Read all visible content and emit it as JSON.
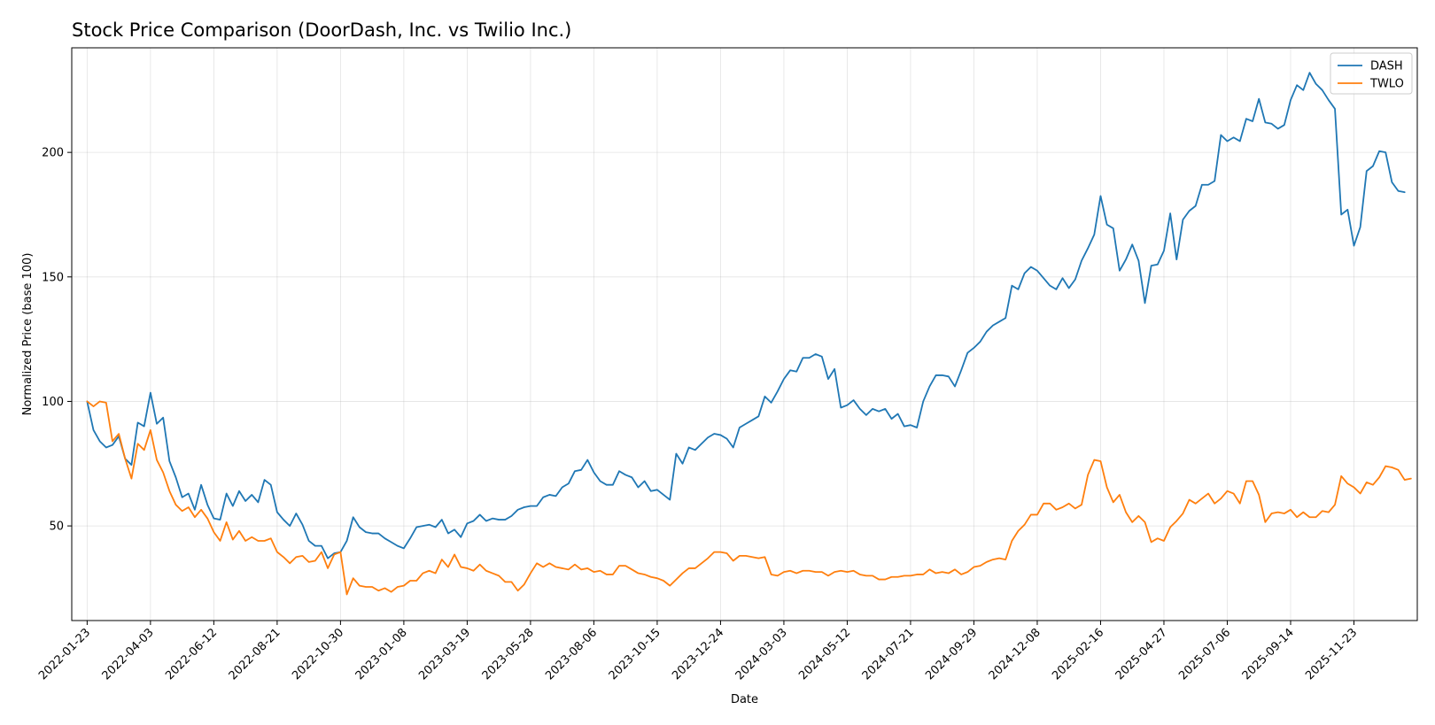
{
  "chart_data": {
    "type": "line",
    "title": "Stock Price Comparison (DoorDash, Inc. vs Twilio Inc.)",
    "xlabel": "Date",
    "ylabel": "Normalized Price (base 100)",
    "x_range": [
      "2022-01-06",
      "2026-02-01"
    ],
    "ylim": [
      12,
      242
    ],
    "yticks": [
      50,
      100,
      150,
      200
    ],
    "xticks": [
      "2022-01-23",
      "2022-04-03",
      "2022-06-12",
      "2022-08-21",
      "2022-10-30",
      "2023-01-08",
      "2023-03-19",
      "2023-05-28",
      "2023-08-06",
      "2023-10-15",
      "2023-12-24",
      "2024-03-03",
      "2024-05-12",
      "2024-07-21",
      "2024-09-29",
      "2024-12-08",
      "2025-02-16",
      "2025-04-27",
      "2025-07-06",
      "2025-09-14",
      "2025-11-23"
    ],
    "grid": true,
    "legend_position": "top-right",
    "start_date": "2022-01-23",
    "step_days": 7,
    "series": [
      {
        "name": "DASH",
        "color": "#1f77b4",
        "values": [
          100,
          88.5,
          84,
          81.5,
          82.5,
          86,
          77,
          74.5,
          91.5,
          90,
          103.5,
          91,
          93.5,
          76,
          69.5,
          61.5,
          63,
          56.5,
          66.5,
          58.5,
          53,
          52.5,
          63,
          58,
          64,
          60,
          62.5,
          59.5,
          68.5,
          66.5,
          55.5,
          52.5,
          50,
          55,
          50.5,
          44,
          42,
          42,
          37,
          39,
          39.5,
          44,
          53.5,
          49.5,
          47.5,
          47,
          47,
          45,
          43.5,
          42,
          41,
          45,
          49.5,
          50,
          50.5,
          49.5,
          52.5,
          47,
          48.5,
          45.5,
          51,
          52,
          54.5,
          52,
          53,
          52.5,
          52.5,
          54,
          56.5,
          57.5,
          58,
          58,
          61.5,
          62.5,
          62,
          65.5,
          67,
          72,
          72.5,
          76.5,
          71.5,
          68,
          66.5,
          66.5,
          72,
          70.5,
          69.5,
          65.5,
          68,
          64,
          64.5,
          62.5,
          60.5,
          79,
          75,
          81.5,
          80.5,
          83,
          85.5,
          87,
          86.5,
          85,
          81.5,
          89.5,
          91,
          92.5,
          94,
          102,
          99.5,
          104,
          109,
          112.5,
          112,
          117.5,
          117.5,
          119,
          118,
          109,
          113,
          97.5,
          98.5,
          100.5,
          97,
          94.5,
          97,
          96,
          97,
          93,
          95,
          90,
          90.5,
          89.5,
          100,
          106,
          110.5,
          110.5,
          110,
          106,
          112.5,
          119.5,
          121.5,
          124,
          128,
          130.5,
          132,
          133.5,
          146.5,
          145,
          151.5,
          154,
          152.5,
          149.5,
          146.5,
          145,
          149.5,
          145.5,
          149,
          156.5,
          161.5,
          167,
          182.5,
          171,
          169.5,
          152.5,
          157,
          163,
          156.5,
          139.5,
          154.5,
          155,
          160.5,
          175.5,
          157,
          173,
          176.5,
          178.5,
          187,
          187,
          188.5,
          207,
          204.5,
          206,
          204.5,
          213.5,
          212.5,
          221.5,
          212,
          211.5,
          209.5,
          211,
          221,
          227,
          225,
          232,
          227.5,
          225,
          221,
          217.5,
          175,
          177,
          162.5,
          170,
          192.5,
          194.5,
          200.5,
          200,
          188,
          184.5,
          184
        ]
      },
      {
        "name": "TWLO",
        "color": "#ff7f0e",
        "values": [
          100,
          98,
          100,
          99.5,
          84,
          87,
          77,
          69,
          83,
          80.5,
          88.5,
          76.5,
          71.5,
          64,
          58.5,
          56,
          57.5,
          53.5,
          56.5,
          53,
          47.5,
          44,
          51.5,
          44.5,
          48,
          44,
          45.5,
          44,
          44,
          45,
          39.5,
          37.5,
          35,
          37.5,
          38,
          35.5,
          36,
          39.5,
          33,
          38.5,
          39.5,
          22.5,
          29,
          26,
          25.5,
          25.5,
          24,
          25,
          23.5,
          25.5,
          26,
          28,
          28,
          31,
          32,
          31,
          36.5,
          33.5,
          38.5,
          33.5,
          33,
          32,
          34.5,
          32,
          31,
          30,
          27.5,
          27.5,
          24,
          26.5,
          31,
          35,
          33.5,
          35,
          33.5,
          33,
          32.5,
          34.5,
          32.5,
          33,
          31.5,
          32,
          30.5,
          30.5,
          34,
          34,
          32.5,
          31,
          30.5,
          29.5,
          29,
          28,
          26,
          28.5,
          31,
          33,
          33,
          35,
          37,
          39.5,
          39.5,
          39,
          36,
          38,
          38,
          37.5,
          37,
          37.5,
          30.5,
          30,
          31.5,
          32,
          31,
          32,
          32,
          31.5,
          31.5,
          30,
          31.5,
          32,
          31.5,
          32,
          30.5,
          30,
          30,
          28.5,
          28.5,
          29.5,
          29.5,
          30,
          30,
          30.5,
          30.5,
          32.5,
          31,
          31.5,
          31,
          32.5,
          30.5,
          31.5,
          33.5,
          34,
          35.5,
          36.5,
          37,
          36.5,
          44,
          48,
          50.5,
          54.5,
          54.5,
          59,
          59,
          56.5,
          57.5,
          59,
          57,
          58.5,
          70.5,
          76.5,
          76,
          65.5,
          59.5,
          62.5,
          55.5,
          51.5,
          54,
          51.5,
          43.5,
          45,
          44,
          49.5,
          52,
          55,
          60.5,
          59,
          61,
          63,
          59,
          61,
          64,
          63,
          59,
          68,
          68,
          62.5,
          51.5,
          55,
          55.5,
          55,
          56.5,
          53.5,
          55.5,
          53.5,
          53.5,
          56,
          55.5,
          58.5,
          70,
          67,
          65.5,
          63,
          67.5,
          66.5,
          69.5,
          74,
          73.5,
          72.5,
          68.5,
          69
        ]
      }
    ]
  }
}
